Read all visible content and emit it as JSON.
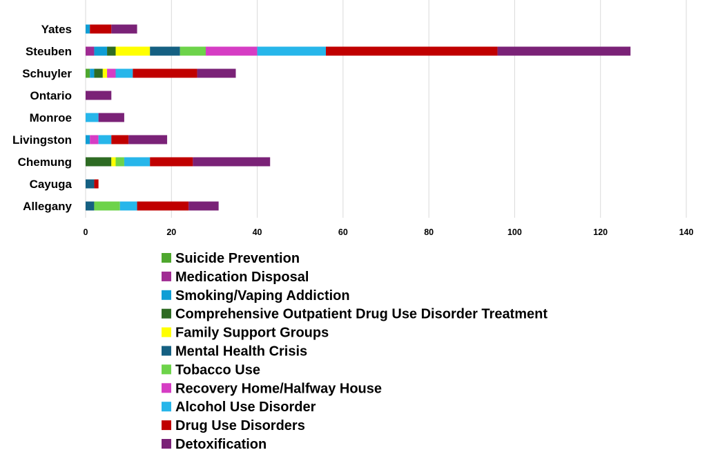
{
  "chart_data": {
    "type": "bar",
    "orientation": "horizontal",
    "stacked": true,
    "categories": [
      "Allegany",
      "Cayuga",
      "Chemung",
      "Livingston",
      "Monroe",
      "Ontario",
      "Schuyler",
      "Steuben",
      "Yates"
    ],
    "xlim": [
      0,
      140
    ],
    "xticks": [
      0,
      20,
      40,
      60,
      80,
      100,
      120,
      140
    ],
    "grid": true,
    "legend_position": "bottom",
    "series": [
      {
        "name": "Suicide Prevention",
        "color": "#4ea72e",
        "values": [
          0,
          0,
          0,
          0,
          0,
          0,
          1,
          0,
          0
        ]
      },
      {
        "name": "Medication Disposal",
        "color": "#a02b93",
        "values": [
          0,
          0,
          0,
          0,
          0,
          0,
          0,
          2,
          0
        ]
      },
      {
        "name": "Smoking/Vaping Addiction",
        "color": "#0f9ed5",
        "values": [
          0,
          0,
          0,
          1,
          0,
          0,
          1,
          3,
          1
        ]
      },
      {
        "name": "Comprehensive Outpatient Drug Use Disorder Treatment",
        "color": "#2e6b23",
        "values": [
          0,
          0,
          6,
          0,
          0,
          0,
          2,
          2,
          0
        ]
      },
      {
        "name": "Family Support Groups",
        "color": "#ffff00",
        "values": [
          0,
          0,
          1,
          0,
          0,
          0,
          1,
          8,
          0
        ]
      },
      {
        "name": "Mental Health Crisis",
        "color": "#156082",
        "values": [
          2,
          2,
          0,
          0,
          0,
          0,
          0,
          7,
          0
        ]
      },
      {
        "name": "Tobacco Use",
        "color": "#6dd34a",
        "values": [
          6,
          0,
          2,
          0,
          0,
          0,
          0,
          6,
          0
        ]
      },
      {
        "name": "Recovery Home/Halfway House",
        "color": "#d63dc4",
        "values": [
          0,
          0,
          0,
          2,
          0,
          0,
          2,
          12,
          0
        ]
      },
      {
        "name": "Alcohol Use Disorder",
        "color": "#27b6ea",
        "values": [
          4,
          0,
          6,
          3,
          3,
          0,
          4,
          16,
          0
        ]
      },
      {
        "name": "Drug Use Disorders",
        "color": "#c00000",
        "values": [
          12,
          1,
          10,
          4,
          0,
          0,
          15,
          40,
          5
        ]
      },
      {
        "name": "Detoxification",
        "color": "#7a2277",
        "values": [
          7,
          0,
          18,
          9,
          6,
          6,
          9,
          31,
          6
        ]
      }
    ]
  }
}
